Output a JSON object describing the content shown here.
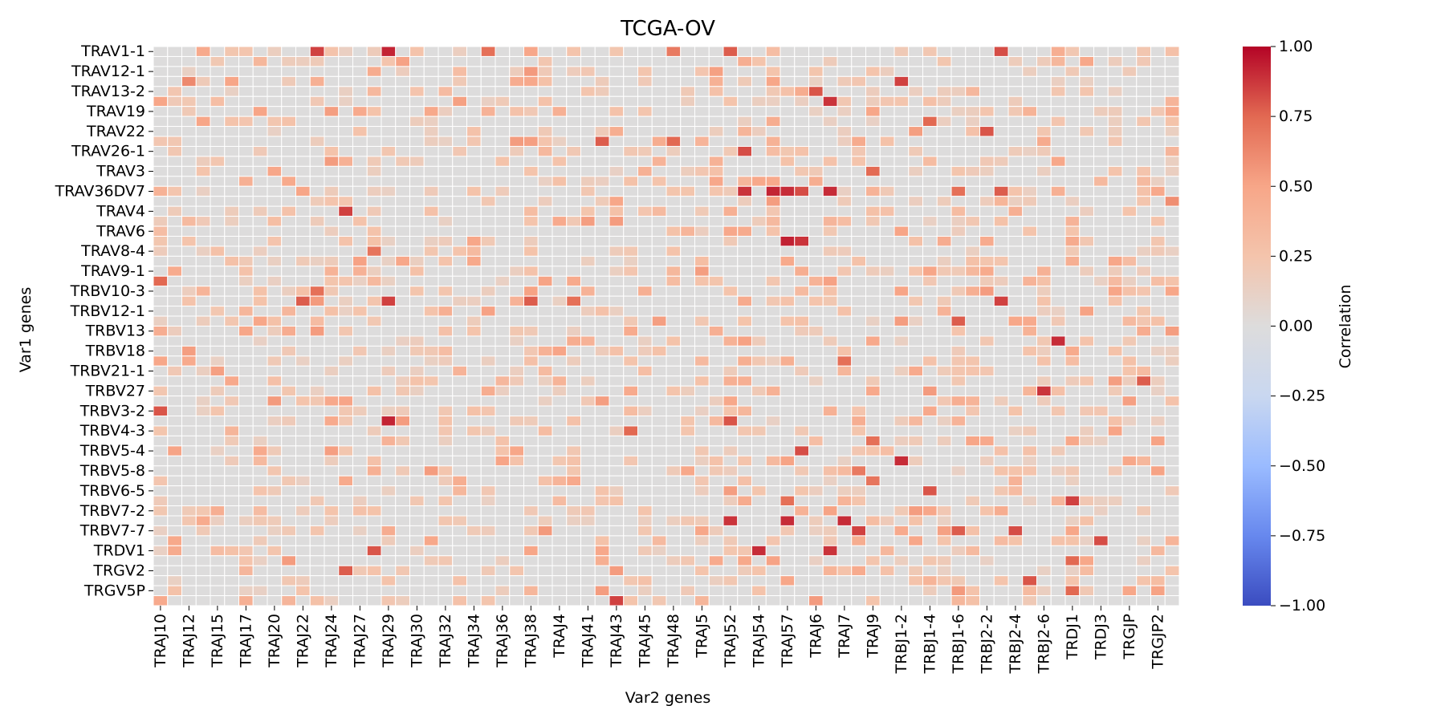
{
  "chart_data": {
    "type": "heatmap",
    "title": "TCGA-OV",
    "xlabel": "Var2 genes",
    "ylabel": "Var1 genes",
    "x_tick_labels": [
      "TRAJ10",
      "TRAJ12",
      "TRAJ15",
      "TRAJ17",
      "TRAJ20",
      "TRAJ22",
      "TRAJ24",
      "TRAJ27",
      "TRAJ29",
      "TRAJ30",
      "TRAJ32",
      "TRAJ34",
      "TRAJ36",
      "TRAJ38",
      "TRAJ4",
      "TRAJ41",
      "TRAJ43",
      "TRAJ45",
      "TRAJ48",
      "TRAJ5",
      "TRAJ52",
      "TRAJ54",
      "TRAJ57",
      "TRAJ6",
      "TRAJ7",
      "TRAJ9",
      "TRBJ1-2",
      "TRBJ1-4",
      "TRBJ1-6",
      "TRBJ2-2",
      "TRBJ2-4",
      "TRBJ2-6",
      "TRDJ1",
      "TRDJ3",
      "TRGJP",
      "TRGJP2"
    ],
    "y_tick_labels": [
      "TRAV1-1",
      "TRAV12-1",
      "TRAV13-2",
      "TRAV19",
      "TRAV22",
      "TRAV26-1",
      "TRAV3",
      "TRAV36DV7",
      "TRAV4",
      "TRAV6",
      "TRAV8-4",
      "TRAV9-1",
      "TRBV10-3",
      "TRBV12-1",
      "TRBV13",
      "TRBV18",
      "TRBV21-1",
      "TRBV27",
      "TRBV3-2",
      "TRBV4-3",
      "TRBV5-4",
      "TRBV5-8",
      "TRBV6-5",
      "TRBV7-2",
      "TRBV7-7",
      "TRDV1",
      "TRGV2",
      "TRGV5P"
    ],
    "n_columns": 72,
    "n_rows": 56,
    "colorbar": {
      "label": "Correlation",
      "vmin": -1.0,
      "vmax": 1.0,
      "ticks": [
        "1.00",
        "0.75",
        "0.50",
        "0.25",
        "0.00",
        "−0.25",
        "−0.50",
        "−0.75",
        "−1.00"
      ],
      "colormap": "coolwarm",
      "colors": [
        "#3b4cc0",
        "#6788ee",
        "#9abbff",
        "#c9d7f0",
        "#dddcdc",
        "#f4c4ac",
        "#f7a688",
        "#e26952",
        "#b40426"
      ]
    },
    "highlighted_cells": [
      {
        "row": 0,
        "col": 11,
        "value": 0.85
      },
      {
        "row": 0,
        "col": 16,
        "value": 0.92
      },
      {
        "row": 0,
        "col": 23,
        "value": 0.72
      },
      {
        "row": 0,
        "col": 36,
        "value": 0.68
      },
      {
        "row": 0,
        "col": 40,
        "value": 0.78
      },
      {
        "row": 0,
        "col": 59,
        "value": 0.82
      },
      {
        "row": 3,
        "col": 2,
        "value": 0.62
      },
      {
        "row": 3,
        "col": 52,
        "value": 0.85
      },
      {
        "row": 4,
        "col": 46,
        "value": 0.8
      },
      {
        "row": 5,
        "col": 47,
        "value": 0.88
      },
      {
        "row": 7,
        "col": 54,
        "value": 0.75
      },
      {
        "row": 8,
        "col": 58,
        "value": 0.8
      },
      {
        "row": 9,
        "col": 31,
        "value": 0.78
      },
      {
        "row": 9,
        "col": 36,
        "value": 0.75
      },
      {
        "row": 10,
        "col": 41,
        "value": 0.82
      },
      {
        "row": 12,
        "col": 50,
        "value": 0.74
      },
      {
        "row": 14,
        "col": 41,
        "value": 0.88
      },
      {
        "row": 14,
        "col": 43,
        "value": 0.92
      },
      {
        "row": 14,
        "col": 44,
        "value": 0.9
      },
      {
        "row": 14,
        "col": 45,
        "value": 0.82
      },
      {
        "row": 14,
        "col": 47,
        "value": 0.9
      },
      {
        "row": 14,
        "col": 56,
        "value": 0.72
      },
      {
        "row": 14,
        "col": 59,
        "value": 0.78
      },
      {
        "row": 15,
        "col": 71,
        "value": 0.6
      },
      {
        "row": 16,
        "col": 13,
        "value": 0.85
      },
      {
        "row": 19,
        "col": 44,
        "value": 0.93
      },
      {
        "row": 19,
        "col": 45,
        "value": 0.88
      },
      {
        "row": 20,
        "col": 15,
        "value": 0.7
      },
      {
        "row": 23,
        "col": 0,
        "value": 0.75
      },
      {
        "row": 24,
        "col": 11,
        "value": 0.72
      },
      {
        "row": 25,
        "col": 10,
        "value": 0.78
      },
      {
        "row": 25,
        "col": 16,
        "value": 0.85
      },
      {
        "row": 25,
        "col": 26,
        "value": 0.78
      },
      {
        "row": 25,
        "col": 29,
        "value": 0.72
      },
      {
        "row": 25,
        "col": 59,
        "value": 0.85
      },
      {
        "row": 27,
        "col": 56,
        "value": 0.78
      },
      {
        "row": 29,
        "col": 63,
        "value": 0.9
      },
      {
        "row": 31,
        "col": 48,
        "value": 0.72
      },
      {
        "row": 33,
        "col": 69,
        "value": 0.78
      },
      {
        "row": 34,
        "col": 62,
        "value": 0.88
      },
      {
        "row": 36,
        "col": 0,
        "value": 0.8
      },
      {
        "row": 37,
        "col": 16,
        "value": 0.92
      },
      {
        "row": 37,
        "col": 40,
        "value": 0.8
      },
      {
        "row": 38,
        "col": 33,
        "value": 0.75
      },
      {
        "row": 39,
        "col": 50,
        "value": 0.72
      },
      {
        "row": 40,
        "col": 45,
        "value": 0.82
      },
      {
        "row": 41,
        "col": 52,
        "value": 0.9
      },
      {
        "row": 42,
        "col": 49,
        "value": 0.68
      },
      {
        "row": 43,
        "col": 50,
        "value": 0.7
      },
      {
        "row": 44,
        "col": 54,
        "value": 0.8
      },
      {
        "row": 45,
        "col": 44,
        "value": 0.72
      },
      {
        "row": 45,
        "col": 64,
        "value": 0.85
      },
      {
        "row": 47,
        "col": 40,
        "value": 0.88
      },
      {
        "row": 47,
        "col": 44,
        "value": 0.9
      },
      {
        "row": 47,
        "col": 48,
        "value": 0.9
      },
      {
        "row": 48,
        "col": 49,
        "value": 0.85
      },
      {
        "row": 48,
        "col": 56,
        "value": 0.78
      },
      {
        "row": 48,
        "col": 60,
        "value": 0.82
      },
      {
        "row": 49,
        "col": 66,
        "value": 0.82
      },
      {
        "row": 50,
        "col": 15,
        "value": 0.8
      },
      {
        "row": 50,
        "col": 42,
        "value": 0.9
      },
      {
        "row": 50,
        "col": 47,
        "value": 0.88
      },
      {
        "row": 51,
        "col": 64,
        "value": 0.75
      },
      {
        "row": 52,
        "col": 13,
        "value": 0.78
      },
      {
        "row": 53,
        "col": 61,
        "value": 0.8
      },
      {
        "row": 54,
        "col": 64,
        "value": 0.75
      },
      {
        "row": 55,
        "col": 32,
        "value": 0.85
      }
    ]
  }
}
